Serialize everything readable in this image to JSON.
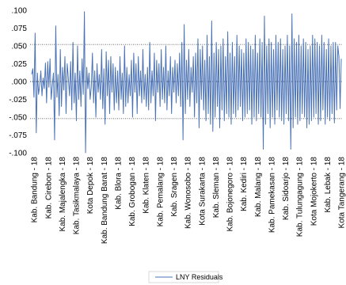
{
  "chart_data": {
    "type": "line",
    "title": "",
    "xlabel": "",
    "ylabel": "",
    "ylim": [
      -0.1,
      0.1
    ],
    "y_ticks": [
      ".100",
      ".075",
      ".050",
      ".025",
      ".000",
      "-.025",
      "-.050",
      "-.075",
      "-.100"
    ],
    "x_tick_labels": [
      "Kab. Bandung - 18",
      "Kab. Cirebon - 18",
      "Kab. Majalengka - 18",
      "Kab. Tasikmalaya - 18",
      "Kota Depok - 18",
      "Kab. Bandung Barat - 18",
      "Kab. Blora - 18",
      "Kab. Grobogan - 18",
      "Kab. Klaten - 18",
      "Kab. Pemalang - 18",
      "Kab. Sragen - 18",
      "Kab. Wonosobo - 18",
      "Kota Surakarta - 18",
      "Kab. Sleman - 18",
      "Kab. Bojonegoro - 18",
      "Kab. Kediri - 18",
      "Kab. Malang - 18",
      "Kab. Pamekasan - 18",
      "Kab. Sidoarjo - 18",
      "Kab. Tulungagung - 18",
      "Kota Mojokerto - 18",
      "Kab. Lebak - 18",
      "Kota Tangerang - 18"
    ],
    "reference_lines": [
      0.052,
      -0.052
    ],
    "legend": {
      "placement": "bottom-center",
      "entries": [
        "LNY Residuals"
      ]
    },
    "series": [
      {
        "name": "LNY Residuals",
        "color": "#4a72b5",
        "values": [
          0.01,
          0.018,
          -0.022,
          0.068,
          -0.072,
          0.012,
          -0.018,
          -0.005,
          0.015,
          -0.02,
          0.005,
          -0.01,
          0.026,
          -0.03,
          0.028,
          -0.008,
          0.032,
          -0.025,
          -0.005,
          0.012,
          -0.082,
          0.078,
          -0.022,
          0.01,
          -0.048,
          0.045,
          -0.035,
          0.02,
          -0.012,
          0.035,
          -0.045,
          0.025,
          0.005,
          -0.02,
          0.028,
          -0.04,
          0.055,
          -0.03,
          0.012,
          -0.055,
          0.05,
          -0.025,
          0.015,
          -0.035,
          0.032,
          -0.018,
          0.098,
          -0.1,
          0.02,
          -0.01,
          0.012,
          -0.025,
          -0.008,
          0.04,
          -0.03,
          0.015,
          -0.05,
          0.025,
          -0.015,
          0.01,
          -0.025,
          0.045,
          -0.038,
          0.018,
          -0.06,
          0.042,
          -0.02,
          0.03,
          -0.045,
          0.035,
          -0.015,
          0.025,
          -0.04,
          0.02,
          -0.03,
          0.015,
          -0.04,
          0.035,
          -0.025,
          0.012,
          -0.045,
          0.05,
          -0.035,
          0.02,
          -0.03,
          0.01,
          -0.02,
          0.03,
          -0.05,
          0.04,
          -0.015,
          0.025,
          -0.045,
          0.035,
          -0.02,
          0.015,
          -0.03,
          0.045,
          -0.025,
          0.01,
          -0.035,
          0.02,
          -0.04,
          0.055,
          -0.03,
          0.015,
          -0.02,
          0.04,
          -0.055,
          0.03,
          -0.015,
          0.025,
          -0.035,
          0.045,
          -0.025,
          0.02,
          -0.03,
          0.05,
          -0.04,
          0.015,
          -0.02,
          0.035,
          -0.045,
          0.02,
          -0.015,
          0.03,
          -0.03,
          0.025,
          -0.02,
          0.04,
          -0.035,
          0.055,
          -0.082,
          0.08,
          -0.045,
          0.03,
          -0.025,
          0.045,
          -0.035,
          0.02,
          -0.015,
          0.035,
          -0.05,
          0.04,
          -0.03,
          0.06,
          -0.065,
          0.045,
          -0.025,
          0.05,
          -0.04,
          0.03,
          -0.055,
          0.065,
          -0.045,
          0.035,
          -0.06,
          0.085,
          -0.07,
          0.04,
          -0.05,
          0.055,
          -0.035,
          0.045,
          -0.065,
          0.05,
          -0.04,
          0.06,
          -0.055,
          0.035,
          -0.045,
          0.07,
          -0.05,
          0.04,
          -0.06,
          0.055,
          -0.045,
          0.035,
          -0.05,
          0.065,
          -0.04,
          0.05,
          -0.035,
          0.045,
          -0.055,
          0.04,
          -0.05,
          0.06,
          -0.045,
          0.055,
          -0.04,
          0.05,
          -0.06,
          0.045,
          -0.05,
          0.065,
          -0.055,
          0.04,
          -0.045,
          0.06,
          -0.05,
          0.055,
          -0.095,
          0.092,
          -0.06,
          0.05,
          -0.045,
          0.06,
          -0.065,
          0.055,
          -0.05,
          0.045,
          -0.06,
          0.065,
          -0.04,
          0.055,
          -0.05,
          0.06,
          -0.055,
          0.045,
          -0.06,
          0.05,
          -0.045,
          0.065,
          -0.055,
          0.05,
          -0.095,
          0.095,
          -0.065,
          0.06,
          -0.05,
          0.055,
          -0.06,
          0.065,
          -0.055,
          0.05,
          -0.045,
          0.06,
          -0.05,
          0.055,
          -0.065,
          0.045,
          -0.06,
          0.05,
          -0.055,
          0.065,
          -0.05,
          0.06,
          -0.045,
          0.055,
          -0.06,
          0.05,
          -0.055,
          0.065,
          -0.04,
          0.055,
          -0.06,
          0.045,
          -0.05,
          0.06,
          -0.055,
          0.05,
          -0.045,
          0.055,
          -0.058,
          0.055,
          -0.04,
          0.05,
          0.035,
          -0.038,
          0.032
        ]
      }
    ]
  }
}
